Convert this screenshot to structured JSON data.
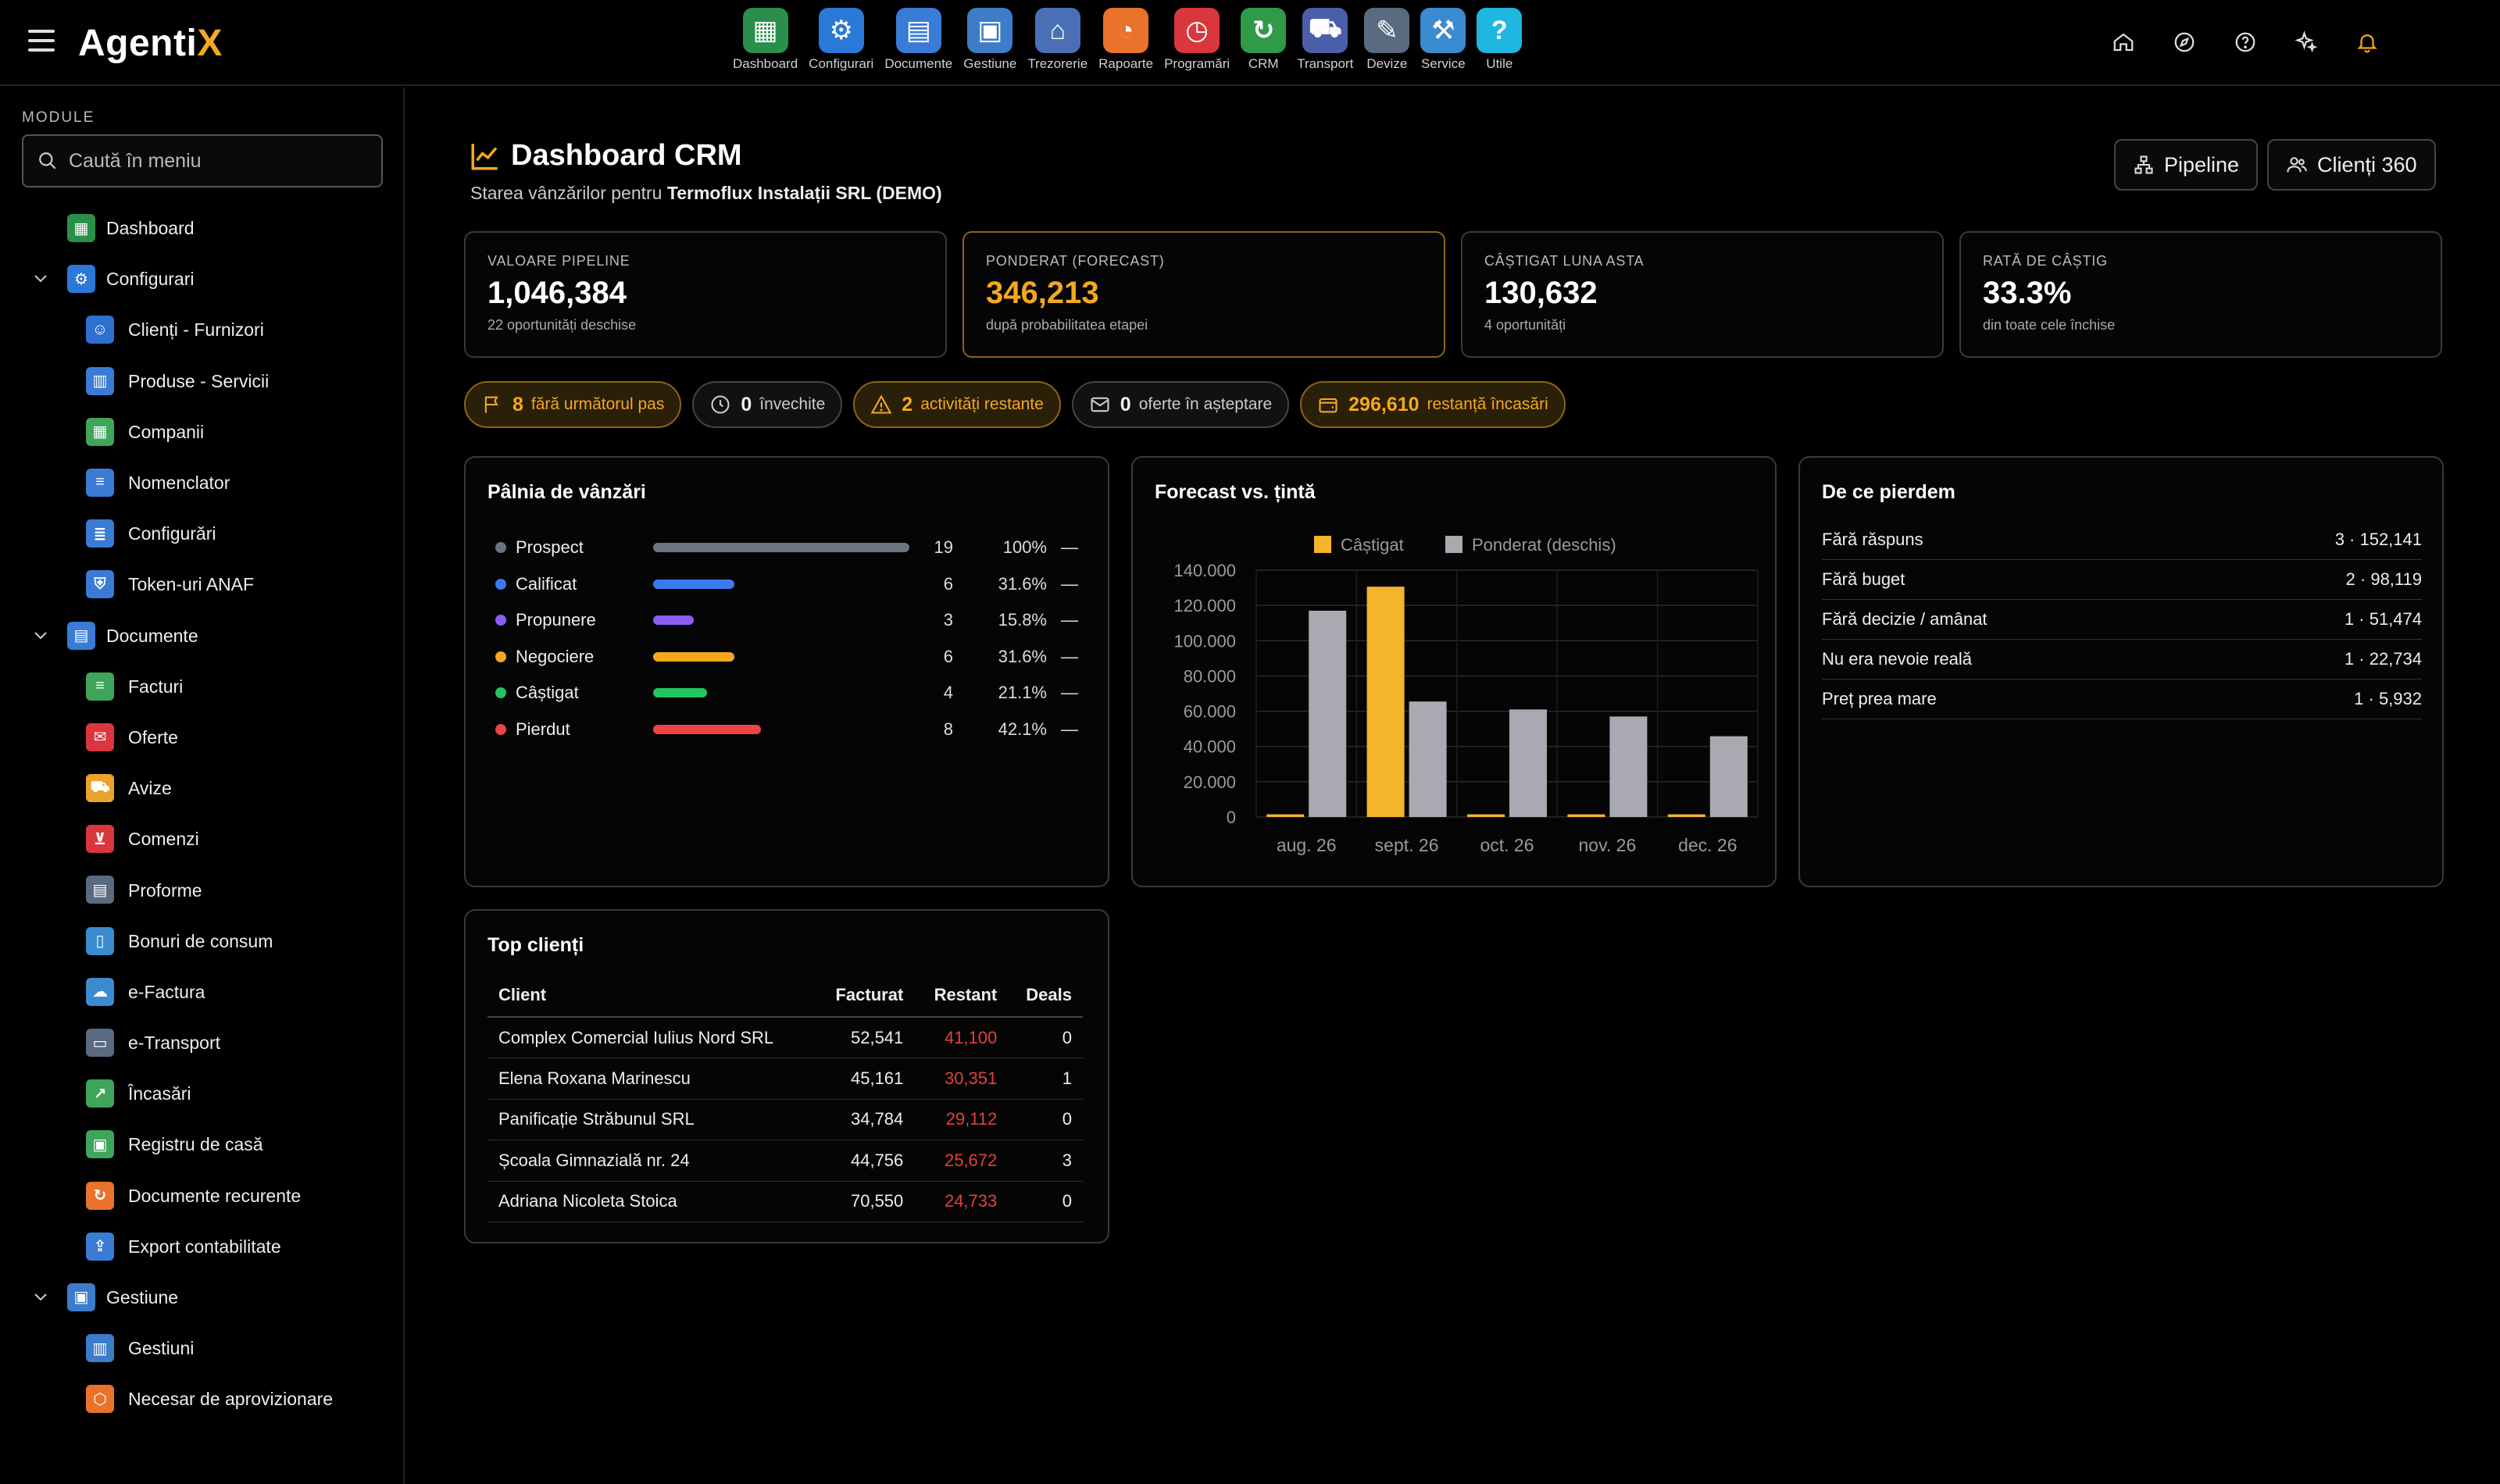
{
  "app": {
    "logo_main": "Agenti",
    "logo_accent": "X"
  },
  "topnav": [
    {
      "label": "Dashboard",
      "icon": "dashboard-icon",
      "color": "#2a8f4a"
    },
    {
      "label": "Configurari",
      "icon": "gear-icon",
      "color": "#2a78d8"
    },
    {
      "label": "Documente",
      "icon": "documents-icon",
      "color": "#3a7bd5"
    },
    {
      "label": "Gestiune",
      "icon": "warehouse-icon",
      "color": "#3d7cc9"
    },
    {
      "label": "Trezorerie",
      "icon": "bank-icon",
      "color": "#4a6fb5"
    },
    {
      "label": "Rapoarte",
      "icon": "pie-chart-icon",
      "color": "#e9732b"
    },
    {
      "label": "Programări",
      "icon": "clock-icon",
      "color": "#d9363e"
    },
    {
      "label": "CRM",
      "icon": "crm-cycle-icon",
      "color": "#2f9a48"
    },
    {
      "label": "Transport",
      "icon": "truck-icon",
      "color": "#4b5ea8"
    },
    {
      "label": "Devize",
      "icon": "estimate-icon",
      "color": "#5a6a80"
    },
    {
      "label": "Service",
      "icon": "service-icon",
      "color": "#3a8bd0"
    },
    {
      "label": "Utile",
      "icon": "help-icon",
      "color": "#1fb6e0"
    }
  ],
  "sidebar": {
    "heading": "MODULE",
    "search_placeholder": "Caută în meniu",
    "items": [
      {
        "label": "Dashboard",
        "level": "top",
        "expanded": false,
        "icon": "dashboard-icon",
        "color": "#2a8f4a"
      },
      {
        "label": "Configurari",
        "level": "top",
        "expanded": true,
        "icon": "gear-icon",
        "color": "#2a78d8"
      },
      {
        "label": "Clienți - Furnizori",
        "level": "sub",
        "icon": "contacts-icon",
        "color": "#2f6fd0"
      },
      {
        "label": "Produse - Servicii",
        "level": "sub",
        "icon": "products-icon",
        "color": "#3a7bd5"
      },
      {
        "label": "Companii",
        "level": "sub",
        "icon": "companies-icon",
        "color": "#3ea55a"
      },
      {
        "label": "Nomenclator",
        "level": "sub",
        "icon": "list-icon",
        "color": "#3a7bd5"
      },
      {
        "label": "Configurări",
        "level": "sub",
        "icon": "settings-list-icon",
        "color": "#3a7bd5"
      },
      {
        "label": "Token-uri ANAF",
        "level": "sub",
        "icon": "shield-icon",
        "color": "#3a7bd5"
      },
      {
        "label": "Documente",
        "level": "top",
        "expanded": true,
        "icon": "documents-icon",
        "color": "#3a7bd5"
      },
      {
        "label": "Facturi",
        "level": "sub",
        "icon": "invoice-icon",
        "color": "#3ea55a"
      },
      {
        "label": "Oferte",
        "level": "sub",
        "icon": "offer-icon",
        "color": "#d9363e"
      },
      {
        "label": "Avize",
        "level": "sub",
        "icon": "delivery-icon",
        "color": "#e9a22b"
      },
      {
        "label": "Comenzi",
        "level": "sub",
        "icon": "cart-icon",
        "color": "#d9363e"
      },
      {
        "label": "Proforme",
        "level": "sub",
        "icon": "proforma-icon",
        "color": "#5a6a80"
      },
      {
        "label": "Bonuri de consum",
        "level": "sub",
        "icon": "receipt-icon",
        "color": "#3a8bd0"
      },
      {
        "label": "e-Factura",
        "level": "sub",
        "icon": "cloud-icon",
        "color": "#3a8bd0"
      },
      {
        "label": "e-Transport",
        "level": "sub",
        "icon": "transport-doc-icon",
        "color": "#5a6a80"
      },
      {
        "label": "Încasări",
        "level": "sub",
        "icon": "growth-chart-icon",
        "color": "#3ea55a"
      },
      {
        "label": "Registru de casă",
        "level": "sub",
        "icon": "cash-register-icon",
        "color": "#3ea55a"
      },
      {
        "label": "Documente recurente",
        "level": "sub",
        "icon": "recurring-icon",
        "color": "#e9732b"
      },
      {
        "label": "Export contabilitate",
        "level": "sub",
        "icon": "export-icon",
        "color": "#3a7bd5"
      },
      {
        "label": "Gestiune",
        "level": "top",
        "expanded": true,
        "icon": "warehouse-icon",
        "color": "#3d7cc9"
      },
      {
        "label": "Gestiuni",
        "level": "sub",
        "icon": "storage-icon",
        "color": "#3d7cc9"
      },
      {
        "label": "Necesar de aprovizionare",
        "level": "sub",
        "icon": "supply-icon",
        "color": "#e9732b"
      }
    ]
  },
  "header": {
    "title": "Dashboard CRM",
    "subtitle_prefix": "Starea vânzărilor pentru",
    "subtitle_company": "Termoflux Instalații SRL (DEMO)",
    "btn_pipeline": "Pipeline",
    "btn_clients": "Clienți 360"
  },
  "kpis": [
    {
      "label": "VALOARE PIPELINE",
      "value": "1,046,384",
      "note": "22 oportunități deschise"
    },
    {
      "label": "PONDERAT (FORECAST)",
      "value": "346,213",
      "note": "după probabilitatea etapei"
    },
    {
      "label": "CÂȘTIGAT LUNA ASTA",
      "value": "130,632",
      "note": "4 oportunități"
    },
    {
      "label": "RATĂ DE CÂȘTIG",
      "value": "33.3%",
      "note": "din toate cele închise"
    }
  ],
  "pills": [
    {
      "count": "8",
      "text": "fără următorul pas",
      "icon": "flag-icon",
      "warn": true
    },
    {
      "count": "0",
      "text": "învechite",
      "icon": "clock-icon",
      "warn": false
    },
    {
      "count": "2",
      "text": "activități restante",
      "icon": "warning-icon",
      "warn": true
    },
    {
      "count": "0",
      "text": "oferte în așteptare",
      "icon": "mail-icon",
      "warn": false
    },
    {
      "count": "296,610",
      "text": "restanță încasări",
      "icon": "wallet-icon",
      "warn": true
    }
  ],
  "funnel": {
    "title": "Pâlnia de vânzări",
    "rows": [
      {
        "name": "Prospect",
        "count": "19",
        "pct": "100%",
        "fraction": 1.0,
        "dash": "—",
        "color": "#6b7482"
      },
      {
        "name": "Calificat",
        "count": "6",
        "pct": "31.6%",
        "fraction": 0.316,
        "dash": "—",
        "color": "#3b7bf0"
      },
      {
        "name": "Propunere",
        "count": "3",
        "pct": "15.8%",
        "fraction": 0.158,
        "dash": "—",
        "color": "#8b5cf6"
      },
      {
        "name": "Negociere",
        "count": "6",
        "pct": "31.6%",
        "fraction": 0.316,
        "dash": "—",
        "color": "#f5a81e"
      },
      {
        "name": "Câștigat",
        "count": "4",
        "pct": "21.1%",
        "fraction": 0.211,
        "dash": "—",
        "color": "#22c55e"
      },
      {
        "name": "Pierdut",
        "count": "8",
        "pct": "42.1%",
        "fraction": 0.421,
        "dash": "—",
        "color": "#ef4444"
      }
    ]
  },
  "chart_data": {
    "type": "bar",
    "title": "Forecast vs. țintă",
    "categories": [
      "aug. 26",
      "sept. 26",
      "oct. 26",
      "nov. 26",
      "dec. 26"
    ],
    "series": [
      {
        "name": "Câștigat",
        "color": "#f5b52a",
        "values": [
          1500,
          130632,
          1500,
          1500,
          1500
        ]
      },
      {
        "name": "Ponderat (deschis)",
        "color": "#a9a9b1",
        "values": [
          117000,
          65500,
          61000,
          57000,
          45800
        ]
      }
    ],
    "yticks": [
      "0",
      "20.000",
      "40.000",
      "60.000",
      "80.000",
      "100.000",
      "120.000",
      "140.000"
    ],
    "ylim": [
      0,
      140000
    ],
    "grid": true,
    "legend": "top"
  },
  "losses": {
    "title": "De ce pierdem",
    "rows": [
      {
        "reason": "Fără răspuns",
        "value": "3 · 152,141"
      },
      {
        "reason": "Fără buget",
        "value": "2 · 98,119"
      },
      {
        "reason": "Fără decizie / amânat",
        "value": "1 · 51,474"
      },
      {
        "reason": "Nu era nevoie reală",
        "value": "1 · 22,734"
      },
      {
        "reason": "Preț prea mare",
        "value": "1 · 5,932"
      }
    ]
  },
  "top_clients": {
    "title": "Top clienți",
    "headers": [
      "Client",
      "Facturat",
      "Restant",
      "Deals"
    ],
    "rows": [
      [
        "Complex Comercial Iulius Nord SRL",
        "52,541",
        "41,100",
        "0"
      ],
      [
        "Elena Roxana Marinescu",
        "45,161",
        "30,351",
        "1"
      ],
      [
        "Panificație Străbunul SRL",
        "34,784",
        "29,112",
        "0"
      ],
      [
        "Școala Gimnazială nr. 24",
        "44,756",
        "25,672",
        "3"
      ],
      [
        "Adriana Nicoleta Stoica",
        "70,550",
        "24,733",
        "0"
      ]
    ]
  }
}
